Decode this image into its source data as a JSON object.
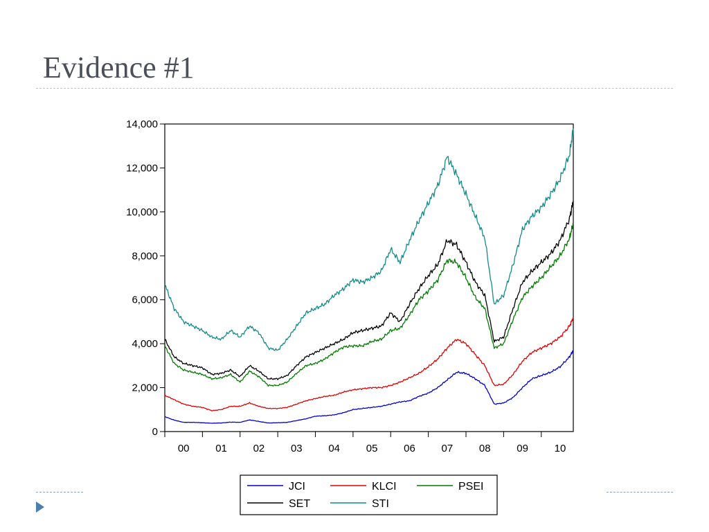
{
  "slide": {
    "title": "Evidence #1"
  },
  "chart_data": {
    "type": "line",
    "xlabel": "",
    "ylabel": "",
    "ylim": [
      0,
      14000
    ],
    "yticks": [
      0,
      2000,
      4000,
      6000,
      8000,
      10000,
      12000,
      14000
    ],
    "ytick_labels": [
      "0",
      "2,000",
      "4,000",
      "6,000",
      "8,000",
      "10,000",
      "12,000",
      "14,000"
    ],
    "xlim": [
      2000.0,
      2010.85
    ],
    "xtick_labels": [
      "00",
      "01",
      "02",
      "03",
      "04",
      "05",
      "06",
      "07",
      "08",
      "09",
      "10"
    ],
    "grid": false,
    "legend_position": "bottom",
    "x": [
      2000.0,
      2000.25,
      2000.5,
      2000.75,
      2001.0,
      2001.25,
      2001.5,
      2001.75,
      2002.0,
      2002.25,
      2002.5,
      2002.75,
      2003.0,
      2003.25,
      2003.5,
      2003.75,
      2004.0,
      2004.25,
      2004.5,
      2004.75,
      2005.0,
      2005.25,
      2005.5,
      2005.75,
      2006.0,
      2006.25,
      2006.5,
      2006.75,
      2007.0,
      2007.25,
      2007.5,
      2007.75,
      2008.0,
      2008.25,
      2008.5,
      2008.75,
      2009.0,
      2009.25,
      2009.5,
      2009.75,
      2010.0,
      2010.25,
      2010.5,
      2010.75,
      2010.85
    ],
    "series": [
      {
        "name": "JCI",
        "color": "#0000cc",
        "values": [
          680,
          520,
          420,
          420,
          400,
          380,
          390,
          430,
          420,
          530,
          460,
          390,
          400,
          420,
          500,
          580,
          700,
          720,
          760,
          860,
          1000,
          1050,
          1100,
          1150,
          1250,
          1350,
          1400,
          1600,
          1750,
          2000,
          2350,
          2700,
          2650,
          2400,
          2100,
          1250,
          1300,
          1550,
          2000,
          2400,
          2550,
          2700,
          2950,
          3400,
          3700
        ]
      },
      {
        "name": "KLCI",
        "color": "#e00000",
        "values": [
          1650,
          1450,
          1250,
          1150,
          1100,
          950,
          1000,
          1150,
          1150,
          1300,
          1150,
          1050,
          1050,
          1100,
          1250,
          1400,
          1500,
          1600,
          1650,
          1800,
          1900,
          1950,
          2000,
          2000,
          2100,
          2250,
          2450,
          2650,
          2950,
          3300,
          3800,
          4200,
          4000,
          3500,
          3000,
          2100,
          2150,
          2600,
          3200,
          3600,
          3800,
          4000,
          4300,
          4800,
          5200
        ]
      },
      {
        "name": "PSEI",
        "color": "#007a00",
        "values": [
          3900,
          3100,
          2800,
          2700,
          2600,
          2400,
          2450,
          2600,
          2250,
          2750,
          2500,
          2100,
          2100,
          2250,
          2650,
          3000,
          3100,
          3300,
          3600,
          3850,
          3900,
          3900,
          4100,
          4200,
          4600,
          4700,
          5300,
          6000,
          6400,
          6900,
          7800,
          7700,
          7000,
          6100,
          5600,
          3800,
          4000,
          5100,
          6100,
          6600,
          7000,
          7500,
          8000,
          8800,
          9500
        ]
      },
      {
        "name": "SET",
        "color": "#000000",
        "values": [
          4200,
          3400,
          3100,
          3000,
          2900,
          2600,
          2650,
          2800,
          2500,
          3000,
          2750,
          2400,
          2400,
          2550,
          3000,
          3400,
          3600,
          3800,
          4000,
          4200,
          4500,
          4600,
          4700,
          4800,
          5400,
          5000,
          5800,
          6500,
          7100,
          7600,
          8700,
          8500,
          7700,
          6800,
          6200,
          4100,
          4300,
          5600,
          6800,
          7300,
          7700,
          8100,
          8700,
          9700,
          10500
        ]
      },
      {
        "name": "STI",
        "color": "#138a8a",
        "values": [
          6700,
          5600,
          5000,
          4800,
          4600,
          4300,
          4200,
          4600,
          4300,
          4800,
          4500,
          3800,
          3700,
          4200,
          4800,
          5400,
          5600,
          5800,
          6200,
          6500,
          6900,
          6800,
          7000,
          7300,
          8300,
          7700,
          8700,
          9600,
          10400,
          11200,
          12500,
          11700,
          10800,
          9800,
          8800,
          5800,
          6200,
          7600,
          9200,
          9800,
          10200,
          10800,
          11500,
          12600,
          13800
        ]
      }
    ]
  }
}
